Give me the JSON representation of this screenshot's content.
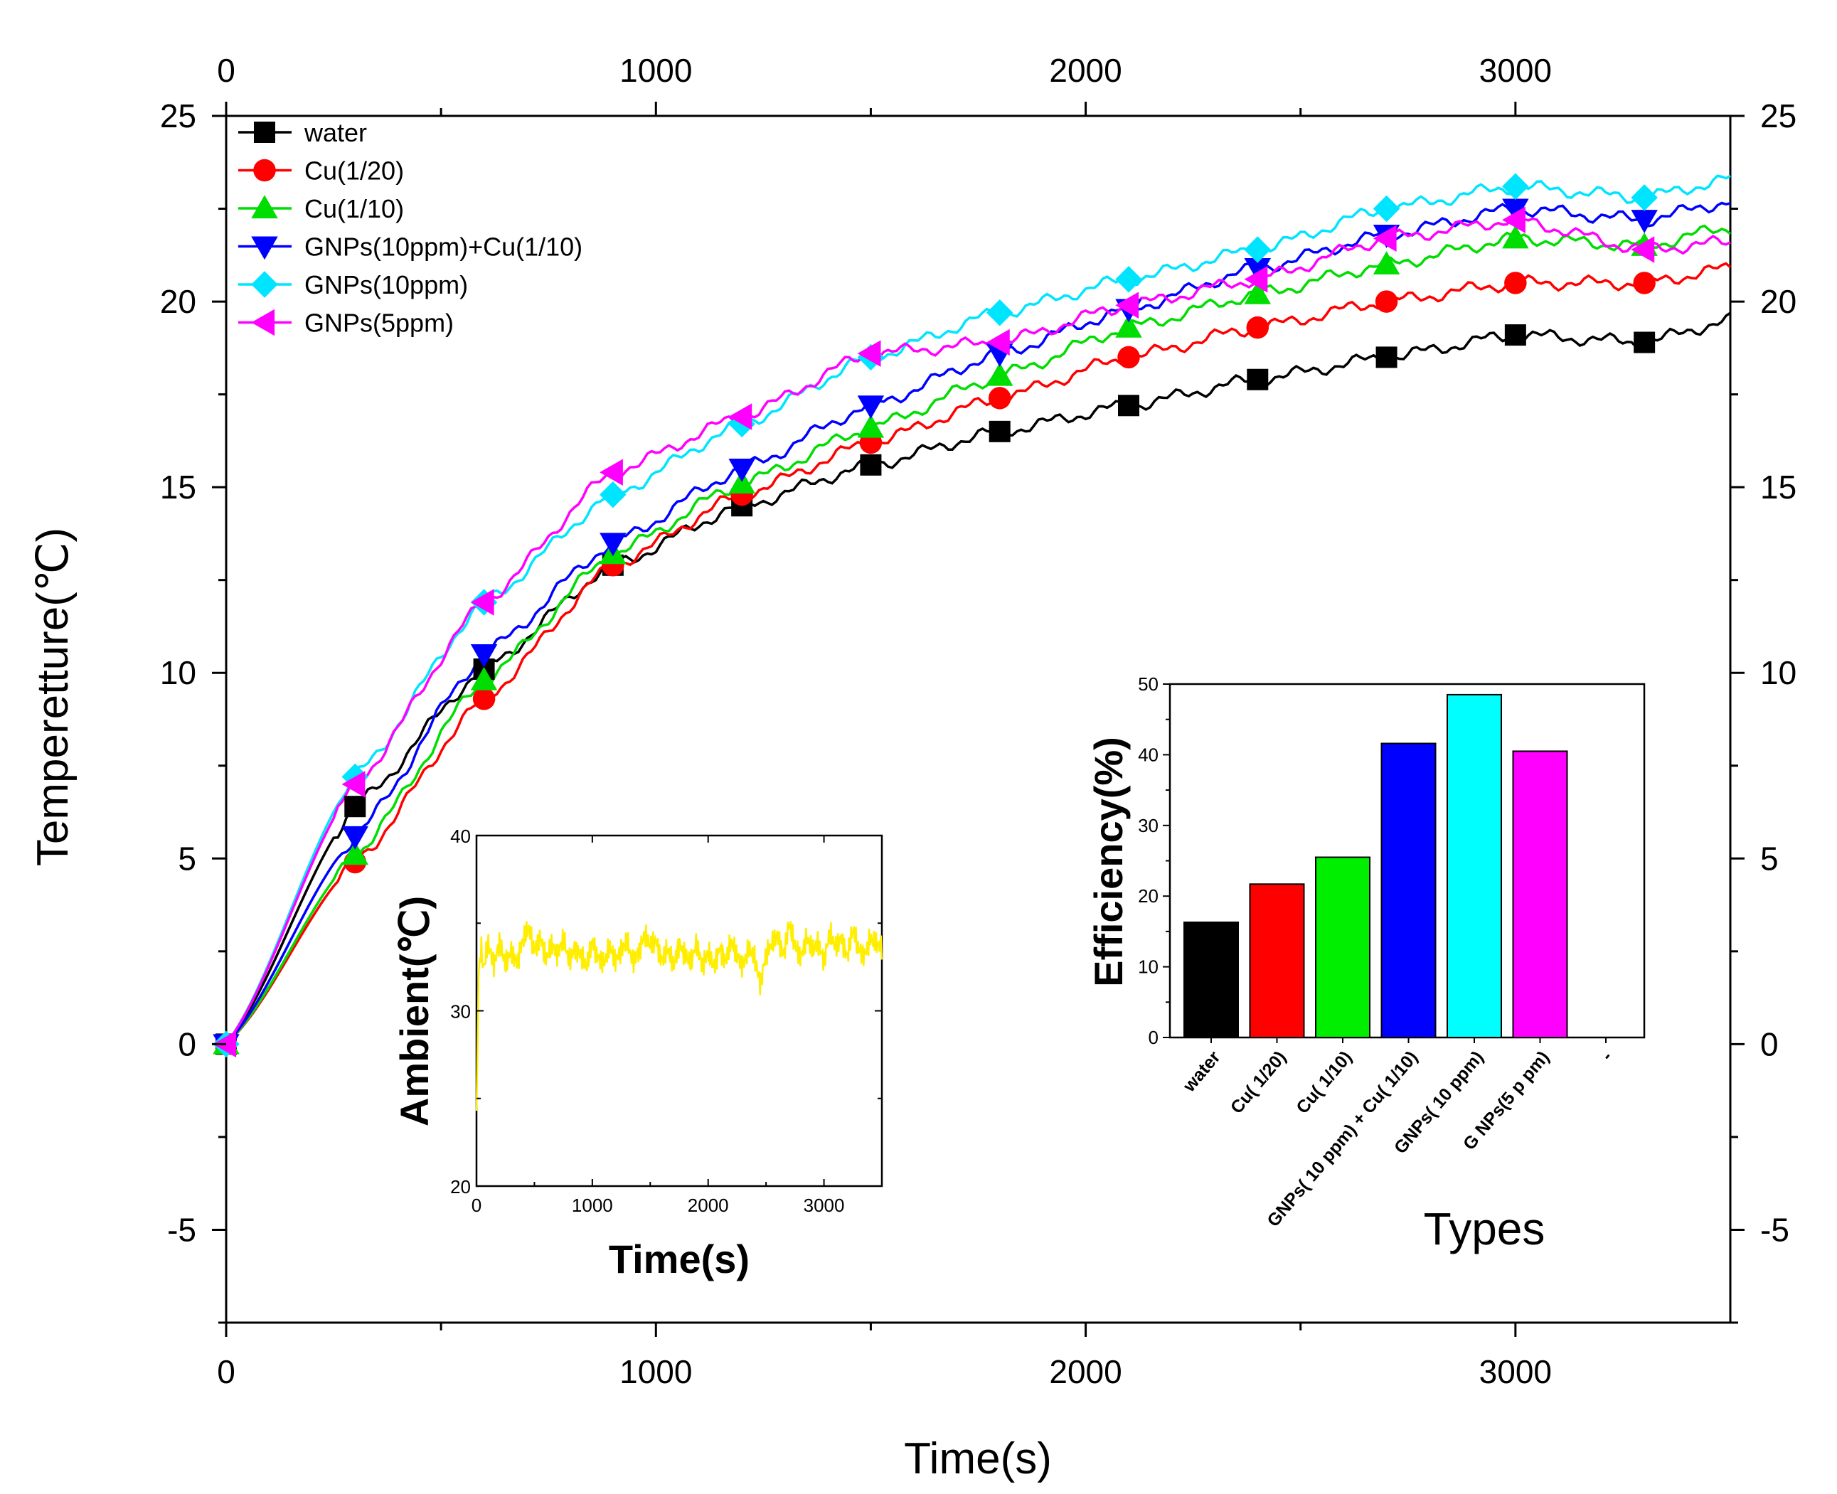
{
  "chart_data": [
    {
      "type": "line",
      "xlabel": "Time(s)",
      "ylabel": "Temperetture(℃)",
      "xlim": [
        0,
        3500
      ],
      "ylim": [
        -7.5,
        25
      ],
      "x_ticks": [
        "0",
        "1000",
        "2000",
        "3000"
      ],
      "x_tick_values": [
        0,
        1000,
        2000,
        3000
      ],
      "y_ticks": [
        "-5",
        "0",
        "5",
        "10",
        "15",
        "20",
        "25"
      ],
      "y_tick_values": [
        -5,
        0,
        5,
        10,
        15,
        20,
        25
      ],
      "x": [
        0,
        300,
        600,
        900,
        1200,
        1500,
        1800,
        2100,
        2400,
        2700,
        3000,
        3300,
        3500
      ],
      "series": [
        {
          "name": "water",
          "color": "#000000",
          "marker": "square",
          "values": [
            0,
            6.4,
            10.1,
            12.9,
            14.5,
            15.6,
            16.5,
            17.2,
            17.9,
            18.5,
            19.1,
            18.9,
            19.5
          ]
        },
        {
          "name": "Cu(1/20)",
          "color": "#ff0000",
          "marker": "circle",
          "values": [
            0,
            4.9,
            9.3,
            12.9,
            14.8,
            16.2,
            17.4,
            18.5,
            19.3,
            20.0,
            20.5,
            20.5,
            20.9
          ]
        },
        {
          "name": "Cu(1/10)",
          "color": "#00dd00",
          "marker": "triangle-up",
          "values": [
            0,
            5.1,
            9.8,
            13.2,
            15.1,
            16.6,
            18.0,
            19.3,
            20.2,
            21.0,
            21.7,
            21.5,
            22.0
          ]
        },
        {
          "name": "GNPs(10ppm)+Cu(1/10)",
          "color": "#0000ff",
          "marker": "triangle-down",
          "values": [
            0,
            5.6,
            10.5,
            13.5,
            15.5,
            17.2,
            18.6,
            19.8,
            20.9,
            21.8,
            22.5,
            22.2,
            22.7
          ]
        },
        {
          "name": "GNPs(10ppm)",
          "color": "#00e5ff",
          "marker": "diamond",
          "values": [
            0,
            7.2,
            11.9,
            14.8,
            16.7,
            18.5,
            19.7,
            20.6,
            21.4,
            22.5,
            23.1,
            22.8,
            23.3
          ]
        },
        {
          "name": "GNPs(5ppm)",
          "color": "#ff00ff",
          "marker": "triangle-left",
          "values": [
            0,
            7.0,
            11.9,
            15.4,
            16.9,
            18.6,
            18.9,
            19.9,
            20.6,
            21.7,
            22.2,
            21.4,
            21.6
          ]
        }
      ]
    },
    {
      "type": "line",
      "xlabel": "Time(s)",
      "ylabel": "Ambient(℃)",
      "xlim": [
        0,
        3500
      ],
      "ylim": [
        20,
        40
      ],
      "x_ticks": [
        "0",
        "1000",
        "2000",
        "3000"
      ],
      "x_tick_values": [
        0,
        1000,
        2000,
        3000
      ],
      "y_ticks": [
        "20",
        "30",
        "40"
      ],
      "y_tick_values": [
        20,
        30,
        40
      ],
      "series": [
        {
          "name": "ambient",
          "color": "#ffee00",
          "x": [
            0,
            20,
            40,
            60,
            100,
            150,
            200,
            250,
            300,
            350,
            400,
            450,
            500,
            550,
            600,
            650,
            700,
            750,
            800,
            850,
            900,
            950,
            1000,
            1050,
            1100,
            1150,
            1200,
            1250,
            1300,
            1350,
            1400,
            1450,
            1500,
            1550,
            1600,
            1650,
            1700,
            1750,
            1800,
            1850,
            1900,
            1950,
            2000,
            2050,
            2100,
            2150,
            2200,
            2250,
            2300,
            2350,
            2400,
            2450,
            2500,
            2550,
            2600,
            2650,
            2700,
            2750,
            2800,
            2850,
            2900,
            2950,
            3000,
            3050,
            3100,
            3150,
            3200,
            3250,
            3300,
            3350,
            3400,
            3450,
            3500
          ],
          "values": [
            24.3,
            32.5,
            33.6,
            32.4,
            33.8,
            32.7,
            33.9,
            32.6,
            33.4,
            32.8,
            34.0,
            34.7,
            33.5,
            34.2,
            32.9,
            33.8,
            33.3,
            34.1,
            32.8,
            33.6,
            33.2,
            32.5,
            33.9,
            33.1,
            32.7,
            33.6,
            32.9,
            33.5,
            33.9,
            32.8,
            33.4,
            34.3,
            33.7,
            34.0,
            32.9,
            33.5,
            32.6,
            33.8,
            33.2,
            32.7,
            33.9,
            32.6,
            33.3,
            32.5,
            33.6,
            32.8,
            33.9,
            33.2,
            32.6,
            33.5,
            33.0,
            31.6,
            33.2,
            33.8,
            34.3,
            33.2,
            34.9,
            33.7,
            33.1,
            34.2,
            33.4,
            33.9,
            32.9,
            34.4,
            33.6,
            34.2,
            33.1,
            34.6,
            33.5,
            33.2,
            34.1,
            33.8,
            33.7
          ]
        }
      ]
    },
    {
      "type": "bar",
      "xlabel": "Types",
      "ylabel": "Efficiency(%)",
      "ylim": [
        0,
        50
      ],
      "y_ticks": [
        "0",
        "10",
        "20",
        "30",
        "40",
        "50"
      ],
      "y_tick_values": [
        0,
        10,
        20,
        30,
        40,
        50
      ],
      "categories": [
        "water",
        "Cu( 1/20)",
        "Cu( 1/10)",
        "GNPs( 10 ppm) + Cu( 1/10)",
        "GNPs( 10 ppm)",
        "G NPs(5 p pm)"
      ],
      "trailing_tick": "-",
      "values": [
        16.3,
        21.7,
        25.5,
        41.6,
        48.5,
        40.5
      ],
      "colors": [
        "#000000",
        "#ff0000",
        "#00ee00",
        "#0000ff",
        "#00ffff",
        "#ff00ff"
      ]
    }
  ]
}
